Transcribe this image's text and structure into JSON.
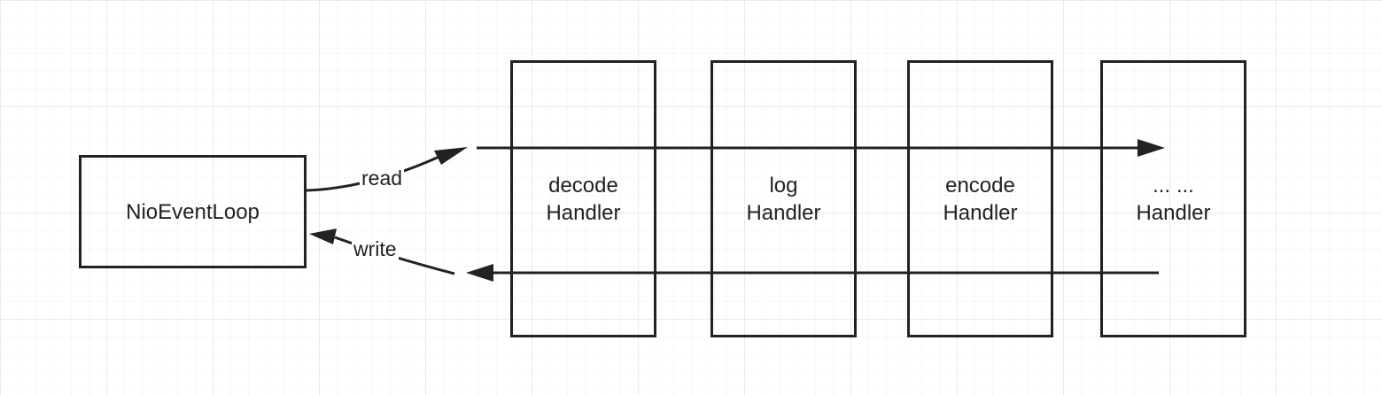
{
  "colors": {
    "stroke": "#222222",
    "grid_major": "#e4e4e4",
    "grid_minor": "#f1f1f1",
    "background": "#ffffff"
  },
  "nodes": {
    "event_loop": {
      "label": "NioEventLoop"
    },
    "handlers": [
      {
        "line1": "decode",
        "line2": "Handler"
      },
      {
        "line1": "log",
        "line2": "Handler"
      },
      {
        "line1": "encode",
        "line2": "Handler"
      },
      {
        "line1": "... ...",
        "line2": "Handler"
      }
    ]
  },
  "edges": {
    "read": {
      "label": "read"
    },
    "write": {
      "label": "write"
    }
  }
}
